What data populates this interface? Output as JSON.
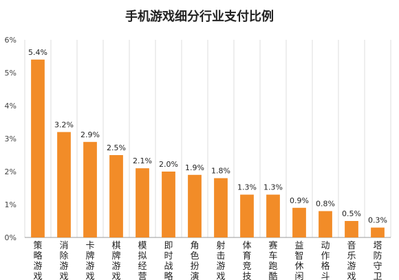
{
  "chart_data": {
    "type": "bar",
    "title": "手机游戏细分行业支付比例",
    "xlabel": "",
    "ylabel": "",
    "ylim": [
      0,
      6
    ],
    "yticks": [
      "0%",
      "1%",
      "2%",
      "3%",
      "4%",
      "5%",
      "6%"
    ],
    "grid": true,
    "legend": "none",
    "categories": [
      "策略游戏",
      "消除游戏",
      "卡牌游戏",
      "棋牌游戏",
      "模拟经营",
      "即时战略",
      "角色扮演",
      "射击游戏",
      "体育竞技",
      "赛车跑酷",
      "益智休闲",
      "动作格斗",
      "音乐游戏",
      "塔防守卫"
    ],
    "values": [
      5.4,
      3.2,
      2.9,
      2.5,
      2.1,
      2.0,
      1.9,
      1.8,
      1.3,
      1.3,
      0.9,
      0.8,
      0.5,
      0.3
    ],
    "data_labels": [
      "5.4%",
      "3.2%",
      "2.9%",
      "2.5%",
      "2.1%",
      "2.0%",
      "1.9%",
      "1.8%",
      "1.3%",
      "1.3%",
      "0.9%",
      "0.8%",
      "0.5%",
      "0.3%"
    ],
    "colors": {
      "bar": "#F28C28",
      "grid": "#DDDDDD",
      "axis": "#999999"
    }
  }
}
